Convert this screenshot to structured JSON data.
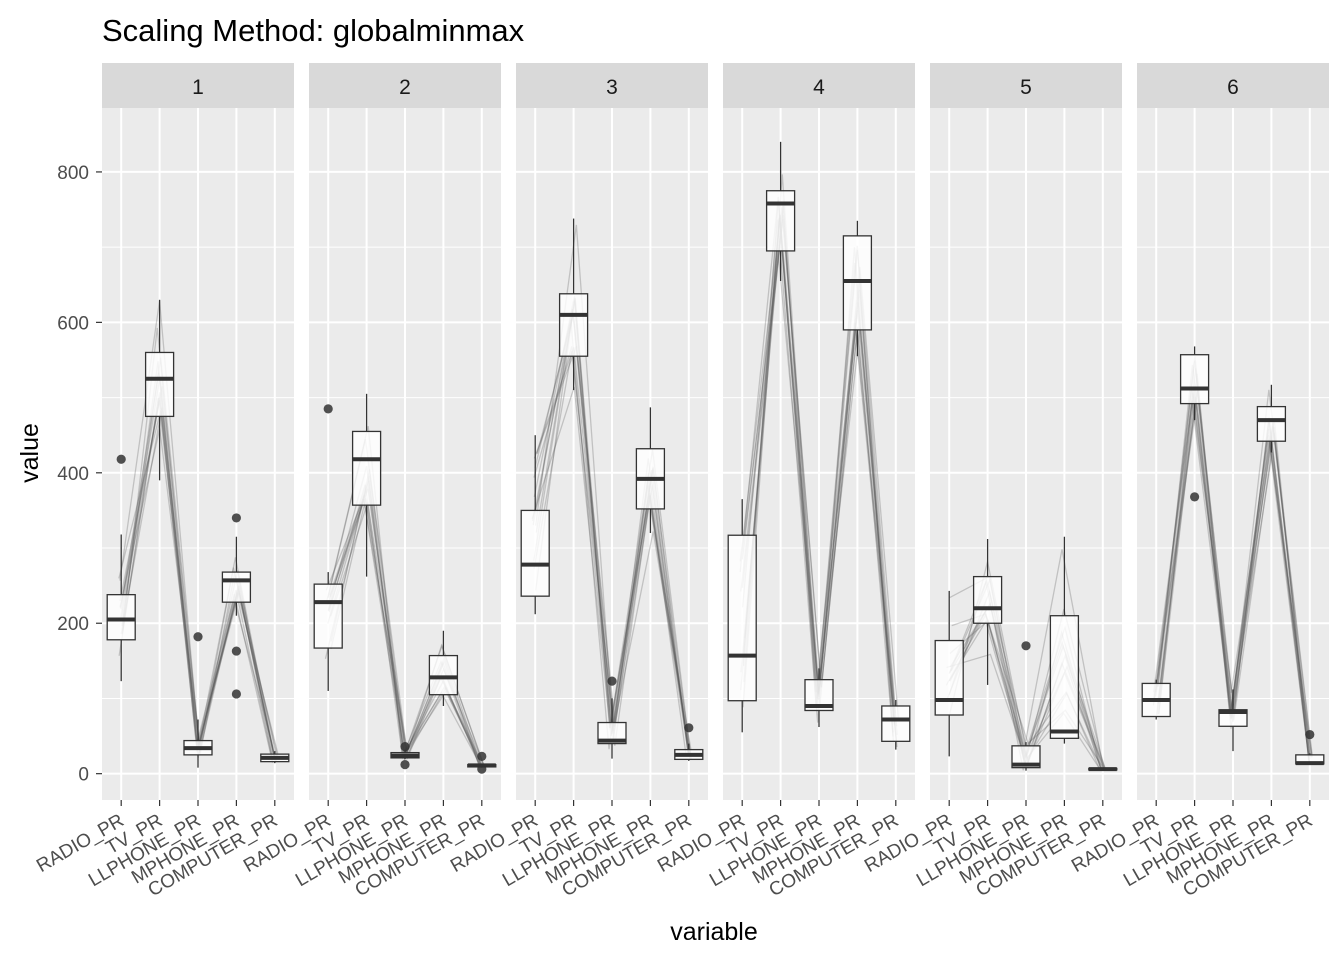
{
  "chart_data": {
    "type": "boxplot",
    "title": "Scaling Method: globalminmax",
    "xlabel": "variable",
    "ylabel": "value",
    "ylim": [
      -35,
      885
    ],
    "y_ticks": [
      0,
      200,
      400,
      600,
      800
    ],
    "grid": true,
    "categories": [
      "RADIO_PR",
      "TV_PR",
      "LLPHONE_PR",
      "MPHONE_PR",
      "COMPUTER_PR"
    ],
    "facets": [
      {
        "label": "1",
        "boxes": [
          {
            "min": 123,
            "q1": 178,
            "median": 205,
            "q3": 238,
            "max": 318,
            "outliers": [
              418
            ]
          },
          {
            "min": 390,
            "q1": 475,
            "median": 525,
            "q3": 560,
            "max": 630,
            "outliers": []
          },
          {
            "min": 8,
            "q1": 25,
            "median": 34,
            "q3": 44,
            "max": 72,
            "outliers": [
              182
            ]
          },
          {
            "min": 210,
            "q1": 228,
            "median": 257,
            "q3": 268,
            "max": 315,
            "outliers": [
              340,
              163,
              106
            ]
          },
          {
            "min": 14,
            "q1": 16,
            "median": 21,
            "q3": 26,
            "max": 30,
            "outliers": []
          }
        ]
      },
      {
        "label": "2",
        "boxes": [
          {
            "min": 110,
            "q1": 167,
            "median": 228,
            "q3": 252,
            "max": 268,
            "outliers": [
              485
            ]
          },
          {
            "min": 262,
            "q1": 357,
            "median": 418,
            "q3": 455,
            "max": 505,
            "outliers": []
          },
          {
            "min": 19,
            "q1": 21,
            "median": 24,
            "q3": 28,
            "max": 32,
            "outliers": [
              12,
              36
            ]
          },
          {
            "min": 90,
            "q1": 105,
            "median": 128,
            "q3": 157,
            "max": 190,
            "outliers": []
          },
          {
            "min": 8,
            "q1": 9,
            "median": 11,
            "q3": 12,
            "max": 13,
            "outliers": [
              6,
              23
            ]
          }
        ]
      },
      {
        "label": "3",
        "boxes": [
          {
            "min": 212,
            "q1": 236,
            "median": 278,
            "q3": 350,
            "max": 450,
            "outliers": []
          },
          {
            "min": 510,
            "q1": 555,
            "median": 610,
            "q3": 638,
            "max": 738,
            "outliers": []
          },
          {
            "min": 20,
            "q1": 40,
            "median": 44,
            "q3": 68,
            "max": 100,
            "outliers": [
              123
            ]
          },
          {
            "min": 320,
            "q1": 352,
            "median": 392,
            "q3": 432,
            "max": 487,
            "outliers": []
          },
          {
            "min": 17,
            "q1": 19,
            "median": 25,
            "q3": 32,
            "max": 40,
            "outliers": [
              61
            ]
          }
        ]
      },
      {
        "label": "4",
        "boxes": [
          {
            "min": 55,
            "q1": 97,
            "median": 157,
            "q3": 317,
            "max": 365,
            "outliers": []
          },
          {
            "min": 655,
            "q1": 695,
            "median": 758,
            "q3": 775,
            "max": 840,
            "outliers": []
          },
          {
            "min": 62,
            "q1": 84,
            "median": 90,
            "q3": 125,
            "max": 140,
            "outliers": []
          },
          {
            "min": 555,
            "q1": 590,
            "median": 655,
            "q3": 715,
            "max": 735,
            "outliers": []
          },
          {
            "min": 32,
            "q1": 43,
            "median": 72,
            "q3": 90,
            "max": 98,
            "outliers": []
          }
        ]
      },
      {
        "label": "5",
        "boxes": [
          {
            "min": 23,
            "q1": 78,
            "median": 98,
            "q3": 177,
            "max": 243,
            "outliers": []
          },
          {
            "min": 118,
            "q1": 200,
            "median": 220,
            "q3": 262,
            "max": 312,
            "outliers": []
          },
          {
            "min": 4,
            "q1": 8,
            "median": 12,
            "q3": 37,
            "max": 42,
            "outliers": [
              170
            ]
          },
          {
            "min": 40,
            "q1": 47,
            "median": 56,
            "q3": 210,
            "max": 315,
            "outliers": []
          },
          {
            "min": 4,
            "q1": 5,
            "median": 6,
            "q3": 7,
            "max": 8,
            "outliers": []
          }
        ]
      },
      {
        "label": "6",
        "boxes": [
          {
            "min": 72,
            "q1": 76,
            "median": 98,
            "q3": 120,
            "max": 125,
            "outliers": []
          },
          {
            "min": 470,
            "q1": 492,
            "median": 512,
            "q3": 557,
            "max": 568,
            "outliers": [
              368
            ]
          },
          {
            "min": 30,
            "q1": 63,
            "median": 82,
            "q3": 85,
            "max": 112,
            "outliers": []
          },
          {
            "min": 427,
            "q1": 442,
            "median": 470,
            "q3": 488,
            "max": 517,
            "outliers": []
          },
          {
            "min": 12,
            "q1": 13,
            "median": 14,
            "q3": 25,
            "max": 27,
            "outliers": [
              52
            ]
          }
        ]
      }
    ]
  }
}
